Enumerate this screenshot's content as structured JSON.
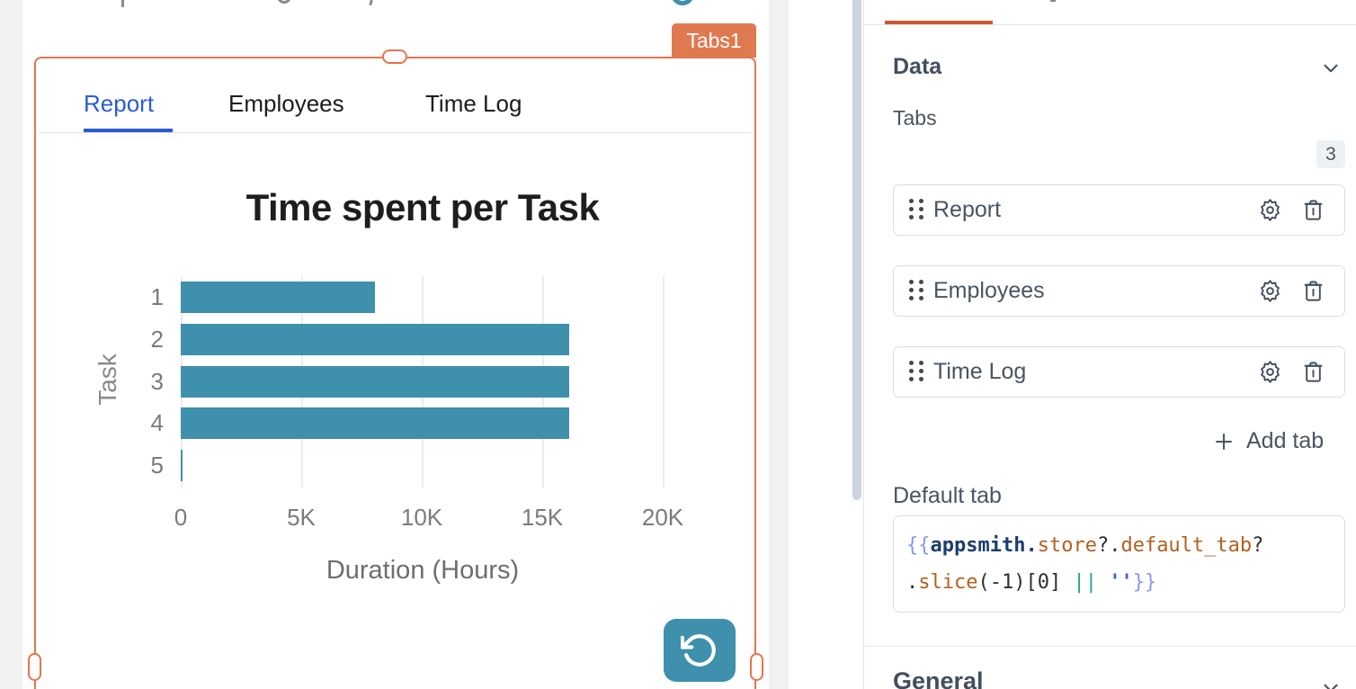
{
  "colors": {
    "selection_orange": "#e7744b",
    "badge_orange": "#df7950",
    "pane_tab_indicator_orange": "#cb5a2d",
    "widget_teal": "#3e90ad",
    "active_tab_blue": "#2a5bd7",
    "panel_text_slate": "#4a5462"
  },
  "canvas": {
    "widget_badge": "Tabs1",
    "tabs": [
      {
        "label": "Report",
        "active": true
      },
      {
        "label": "Employees",
        "active": false
      },
      {
        "label": "Time Log",
        "active": false
      }
    ]
  },
  "chart_data": {
    "type": "bar",
    "orientation": "horizontal",
    "title": "Time spent per Task",
    "categories": [
      "1",
      "2",
      "3",
      "4",
      "5"
    ],
    "values": [
      8060,
      16120,
      16120,
      16120,
      50
    ],
    "xlabel": "Duration (Hours)",
    "ylabel": "Task",
    "xticks": [
      "0",
      "5K",
      "10K",
      "15K",
      "20K"
    ],
    "xlim": [
      0,
      20000
    ],
    "grid": true,
    "legend": false,
    "bar_color": "#3e90ad"
  },
  "property_pane": {
    "data_section": {
      "title": "Data",
      "tabs_label": "Tabs",
      "tabs_count": "3",
      "items": [
        {
          "label": "Report"
        },
        {
          "label": "Employees"
        },
        {
          "label": "Time Log"
        }
      ],
      "add_tab_label": "Add tab",
      "default_tab_label": "Default tab",
      "default_tab_code_lines": [
        [
          {
            "text": "{{",
            "type": "brace"
          },
          {
            "text": "appsmith",
            "type": "global"
          },
          {
            "text": ".",
            "type": "global"
          },
          {
            "text": "store",
            "type": "prop"
          },
          {
            "text": "?.",
            "type": "plain"
          },
          {
            "text": "default_tab",
            "type": "prop"
          },
          {
            "text": "?",
            "type": "plain"
          }
        ],
        [
          {
            "text": ".",
            "type": "plain"
          },
          {
            "text": "slice",
            "type": "prop"
          },
          {
            "text": "(-1)[0] ",
            "type": "plain"
          },
          {
            "text": "||",
            "type": "op"
          },
          {
            "text": " ",
            "type": "plain"
          },
          {
            "text": "''",
            "type": "str"
          },
          {
            "text": "}}",
            "type": "brace"
          }
        ]
      ]
    },
    "general_section": {
      "title": "General"
    }
  }
}
